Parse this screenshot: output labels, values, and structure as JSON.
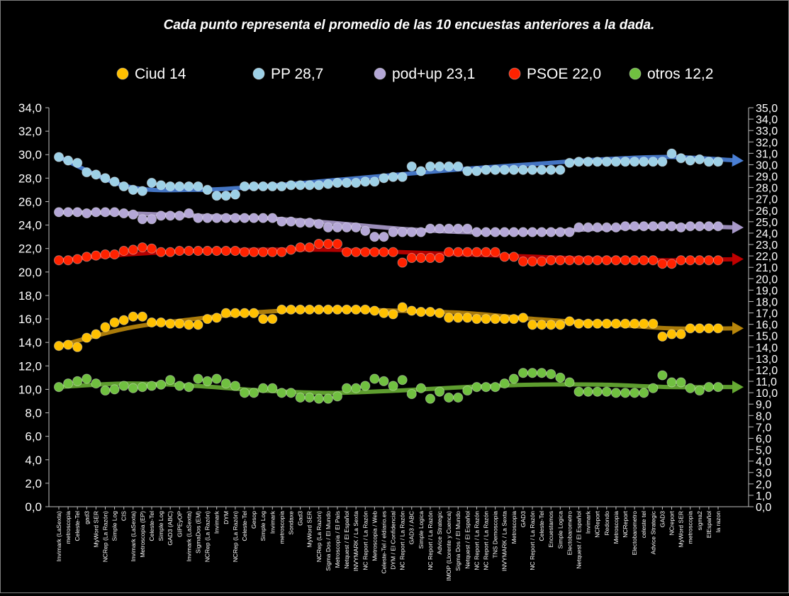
{
  "chart_data": {
    "type": "scatter",
    "title": "Cada punto representa el promedio de las 10 encuestas anteriores a la dada.",
    "categories": [
      "Invimark (LaSexta)",
      "metroscopia",
      "Celeste-Tel",
      "gad3",
      "MyWord SER",
      "NCRep (La Razón)",
      "Simple Log",
      "CIS",
      "Invimark (LaSexta)",
      "Metroscopia (EP)",
      "Celeste-Tel",
      "Simple Log",
      "GAD3 (ABC)",
      "GIPEyOP",
      "Invimark (LaSexta)",
      "SigmaDos (EM)",
      "NCRep (La Razón)",
      "Invimark",
      "DYM",
      "NCRep (La Razón)",
      "Celeste-Tel",
      "Gesop",
      "Simple Log",
      "Invimark",
      "metroscopia",
      "Sondaxe",
      "Gad3",
      "MyWord SER",
      "NCRep (La Razón)",
      "Sigma Dos / El Mundo",
      "Metroscopia / El País",
      "Netquest / El Español",
      "INVYMARK / La Sexta",
      "NC Report / La Razón",
      "Metroscopia / Web",
      "Celeste-Tel / eldiario.es",
      "DYM / El Confidencial",
      "NC Report / La Razón",
      "GAD3 / ABC",
      "Simple Logica",
      "NC Report / La Razón",
      "Advice Strategic",
      "IMOP (Llorente y Cuenca)",
      "Sigma Dos / El Mundo",
      "Netquest / El Español",
      "NC Report / La Razón",
      "NC Report / La Razón",
      "TNS Demoscopia",
      "INVYMARK / La Sexta",
      "Metroscopia",
      "GAD3",
      "NC Report / La Razón",
      "Celeste-Tel",
      "Encuestamos",
      "Simple Logica",
      "Electobarometro",
      "Netquest / El Español",
      "Invimark",
      "NCReport",
      "Redondo",
      "Metroscopia",
      "NCReport",
      "Electobarometro",
      "celeste tel",
      "Advice Strategic",
      "GAD3",
      "NCreport",
      "MyWord SER",
      "metroscopia",
      "sigma2",
      "ElEspañol",
      "la razon"
    ],
    "y_left": {
      "min": 0,
      "max": 34,
      "step": 2,
      "tick_labels": [
        "0,0",
        "2,0",
        "4,0",
        "6,0",
        "8,0",
        "10,0",
        "12,0",
        "14,0",
        "16,0",
        "18,0",
        "20,0",
        "22,0",
        "24,0",
        "26,0",
        "28,0",
        "30,0",
        "32,0",
        "34,0"
      ]
    },
    "y_right": {
      "min": 0,
      "max": 35,
      "step": 1,
      "tick_labels": [
        "0,0",
        "1,0",
        "2,0",
        "3,0",
        "4,0",
        "5,0",
        "6,0",
        "7,0",
        "8,0",
        "9,0",
        "10,0",
        "11,0",
        "12,0",
        "13,0",
        "14,0",
        "15,0",
        "16,0",
        "17,0",
        "18,0",
        "19,0",
        "20,0",
        "21,0",
        "22,0",
        "23,0",
        "24,0",
        "25,0",
        "26,0",
        "27,0",
        "28,0",
        "29,0",
        "30,0",
        "31,0",
        "32,0",
        "33,0",
        "34,0",
        "35,0"
      ]
    },
    "legend_position": "top",
    "grid": false,
    "series": [
      {
        "name": "Ciud 14",
        "color": "#ffc000",
        "trend_color": "#b8860b",
        "trend": [
          13.7,
          15.2,
          16.0,
          16.6,
          16.8,
          16.7,
          16.5,
          16.0,
          15.6,
          15.2,
          15.2
        ],
        "values": [
          13.7,
          13.8,
          13.6,
          14.4,
          14.7,
          15.3,
          15.7,
          15.9,
          16.2,
          16.2,
          15.7,
          15.7,
          15.6,
          15.6,
          15.5,
          15.5,
          16.0,
          16.1,
          16.5,
          16.5,
          16.5,
          16.5,
          16.0,
          16.0,
          16.8,
          16.8,
          16.8,
          16.8,
          16.8,
          16.8,
          16.8,
          16.8,
          16.8,
          16.8,
          16.7,
          16.5,
          16.4,
          17.0,
          16.7,
          16.6,
          16.6,
          16.5,
          16.1,
          16.1,
          16.1,
          16.0,
          16.0,
          16.0,
          16.0,
          16.0,
          16.1,
          15.5,
          15.5,
          15.5,
          15.5,
          15.8,
          15.6,
          15.6,
          15.6,
          15.6,
          15.6,
          15.6,
          15.6,
          15.6,
          15.6,
          14.5,
          14.7,
          14.7,
          15.2,
          15.2,
          15.2,
          15.2
        ]
      },
      {
        "name": "PP 28,7",
        "color": "#9dd0e6",
        "trend_color": "#4a7fd4",
        "trend": [
          29.8,
          27.3,
          27.0,
          27.3,
          27.8,
          28.3,
          28.8,
          29.2,
          29.6,
          29.8,
          29.5
        ],
        "values": [
          29.8,
          29.5,
          29.3,
          28.5,
          28.3,
          28.0,
          27.7,
          27.3,
          27.0,
          26.9,
          27.6,
          27.4,
          27.3,
          27.3,
          27.3,
          27.3,
          27.0,
          26.5,
          26.5,
          26.6,
          27.3,
          27.3,
          27.3,
          27.3,
          27.3,
          27.4,
          27.4,
          27.4,
          27.4,
          27.5,
          27.6,
          27.6,
          27.6,
          27.7,
          27.7,
          28.0,
          28.1,
          28.1,
          29.0,
          28.6,
          29.0,
          29.0,
          29.0,
          29.0,
          28.6,
          28.6,
          28.7,
          28.7,
          28.7,
          28.7,
          28.7,
          28.7,
          28.7,
          28.7,
          28.7,
          29.3,
          29.4,
          29.4,
          29.4,
          29.4,
          29.4,
          29.4,
          29.4,
          29.4,
          29.4,
          29.4,
          30.1,
          29.7,
          29.5,
          29.6,
          29.4,
          29.4
        ]
      },
      {
        "name": "pod+up 23,1",
        "color": "#b4a7d6",
        "trend_color": "#a899c9",
        "trend": [
          25.1,
          25.0,
          24.8,
          24.6,
          24.2,
          23.7,
          23.4,
          23.4,
          23.7,
          23.9,
          23.8
        ],
        "values": [
          25.1,
          25.1,
          25.1,
          25.0,
          25.1,
          25.1,
          25.1,
          25.0,
          24.9,
          24.5,
          24.5,
          24.8,
          24.8,
          24.8,
          25.0,
          24.6,
          24.6,
          24.6,
          24.6,
          24.6,
          24.6,
          24.6,
          24.6,
          24.6,
          24.3,
          24.3,
          24.2,
          24.2,
          24.1,
          23.8,
          23.8,
          23.8,
          23.8,
          23.5,
          23.0,
          23.0,
          23.4,
          23.4,
          23.4,
          23.4,
          23.7,
          23.7,
          23.7,
          23.7,
          23.7,
          23.4,
          23.4,
          23.4,
          23.4,
          23.4,
          23.4,
          23.4,
          23.4,
          23.4,
          23.4,
          23.4,
          23.8,
          23.8,
          23.8,
          23.8,
          23.8,
          23.9,
          23.9,
          23.9,
          23.9,
          23.9,
          23.9,
          23.8,
          23.9,
          23.9,
          23.9,
          23.9
        ]
      },
      {
        "name": "PSOE 22,0",
        "color": "#ff2200",
        "trend_color": "#c00000",
        "trend": [
          21.0,
          21.5,
          21.8,
          21.9,
          21.9,
          21.7,
          21.5,
          21.3,
          21.1,
          21.0,
          21.1
        ],
        "values": [
          21.0,
          21.0,
          21.1,
          21.3,
          21.4,
          21.5,
          21.5,
          21.8,
          21.9,
          22.1,
          22.0,
          21.7,
          21.7,
          21.8,
          21.8,
          21.8,
          21.8,
          21.8,
          21.8,
          21.8,
          21.7,
          21.7,
          21.7,
          21.7,
          21.7,
          21.9,
          22.1,
          22.1,
          22.4,
          22.4,
          22.4,
          21.7,
          21.7,
          21.7,
          21.7,
          21.7,
          21.7,
          20.8,
          21.2,
          21.2,
          21.2,
          21.2,
          21.7,
          21.7,
          21.7,
          21.7,
          21.7,
          21.7,
          21.3,
          21.3,
          20.9,
          20.9,
          20.9,
          21.0,
          21.0,
          21.0,
          21.0,
          21.0,
          21.0,
          21.0,
          21.0,
          21.0,
          21.0,
          21.0,
          21.0,
          20.7,
          20.7,
          21.0,
          21.0,
          21.0,
          21.0,
          21.0
        ]
      },
      {
        "name": "otros 12,2",
        "color": "#70c040",
        "trend_color": "#66aa33",
        "trend": [
          10.2,
          10.5,
          10.3,
          9.9,
          9.7,
          9.9,
          10.2,
          10.4,
          10.4,
          10.2,
          10.2
        ],
        "values": [
          10.2,
          10.5,
          10.7,
          10.9,
          10.5,
          9.9,
          10.0,
          10.3,
          10.1,
          10.2,
          10.3,
          10.4,
          10.8,
          10.3,
          10.2,
          10.9,
          10.7,
          10.9,
          10.5,
          10.3,
          9.7,
          9.7,
          10.1,
          10.1,
          9.7,
          9.7,
          9.3,
          9.3,
          9.2,
          9.2,
          9.4,
          10.1,
          10.1,
          10.3,
          10.9,
          10.7,
          10.3,
          10.8,
          9.6,
          10.1,
          9.2,
          9.8,
          9.3,
          9.3,
          9.9,
          10.2,
          10.2,
          10.2,
          10.5,
          10.9,
          11.4,
          11.4,
          11.4,
          11.3,
          11.0,
          10.6,
          9.8,
          9.8,
          9.8,
          9.8,
          9.7,
          9.7,
          9.7,
          9.7,
          10.1,
          11.2,
          10.6,
          10.6,
          10.1,
          9.9,
          10.2,
          10.2
        ]
      }
    ]
  }
}
